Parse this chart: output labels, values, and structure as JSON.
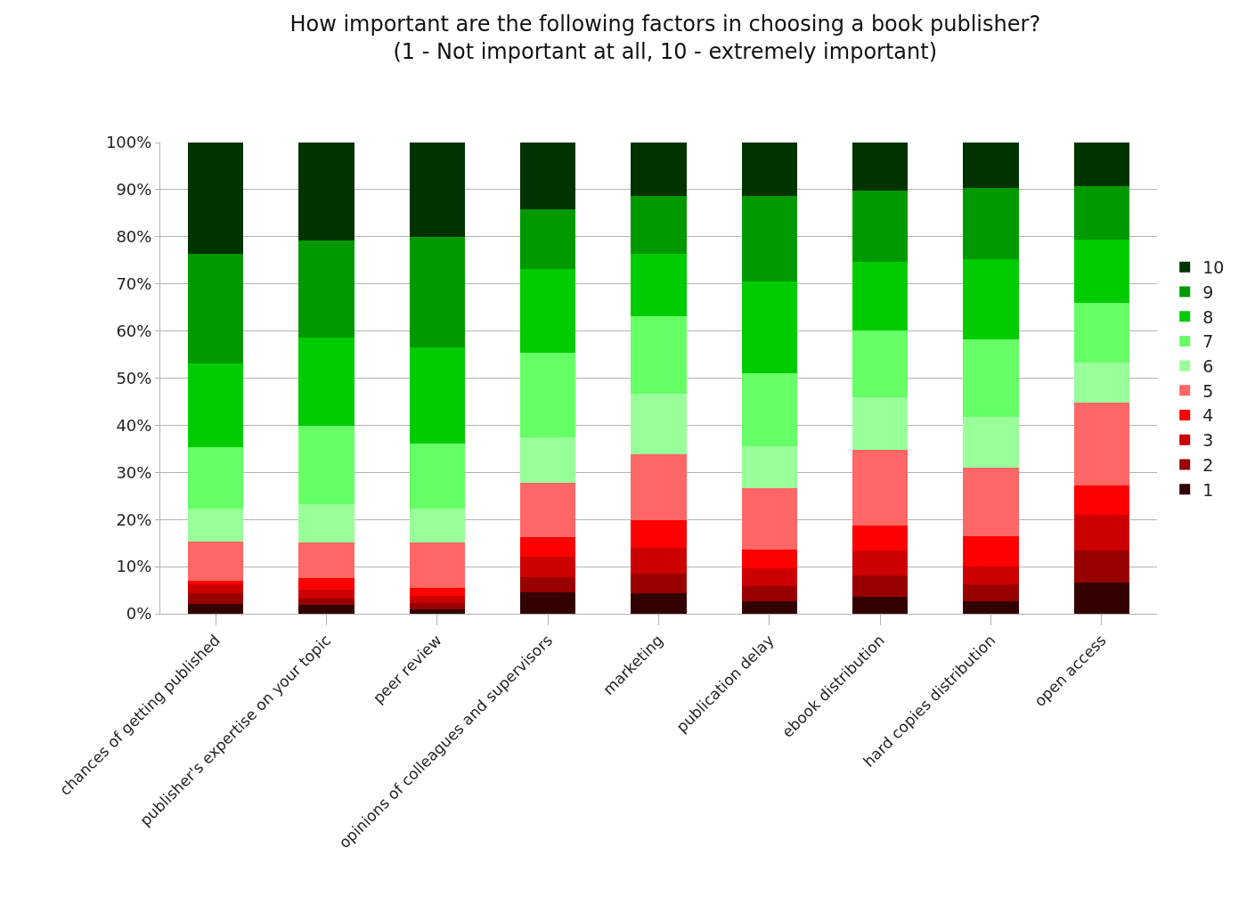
{
  "chart_data": {
    "type": "bar",
    "stacked": true,
    "title": "How important are the following factors in choosing a book publisher?\n(1 - Not important at all, 10 - extremely important)",
    "categories": [
      "chances of getting published",
      "publisher's expertise on your topic",
      "peer review",
      "opinions of colleagues and supervisors",
      "marketing",
      "publication delay",
      "ebook distribution",
      "hard copies distribution",
      "open access"
    ],
    "series": [
      {
        "name": "1",
        "color": "#330000",
        "values": [
          2.1,
          1.9,
          0.9,
          4.5,
          4.3,
          2.6,
          3.6,
          2.7,
          6.7
        ]
      },
      {
        "name": "2",
        "color": "#990000",
        "values": [
          2.2,
          1.3,
          1.3,
          3.3,
          4.2,
          3.2,
          4.6,
          3.5,
          6.7
        ]
      },
      {
        "name": "3",
        "color": "#cc0000",
        "values": [
          1.9,
          1.9,
          1.5,
          4.3,
          5.5,
          3.9,
          5.3,
          3.9,
          7.5
        ]
      },
      {
        "name": "4",
        "color": "#ff0000",
        "values": [
          0.8,
          2.4,
          1.7,
          4.1,
          5.9,
          4.0,
          5.2,
          6.3,
          6.4
        ]
      },
      {
        "name": "5",
        "color": "#ff6666",
        "values": [
          8.4,
          7.6,
          9.7,
          11.6,
          13.9,
          12.9,
          16.1,
          14.6,
          17.5
        ]
      },
      {
        "name": "6",
        "color": "#99ff99",
        "values": [
          7.0,
          8.2,
          7.3,
          9.7,
          12.8,
          8.9,
          11.2,
          10.8,
          8.5
        ]
      },
      {
        "name": "7",
        "color": "#66ff66",
        "values": [
          13.0,
          16.6,
          13.8,
          17.8,
          16.6,
          15.5,
          14.2,
          16.4,
          12.6
        ]
      },
      {
        "name": "8",
        "color": "#00cc00",
        "values": [
          17.8,
          18.7,
          20.4,
          17.8,
          13.1,
          19.5,
          14.4,
          17.0,
          13.5
        ]
      },
      {
        "name": "9",
        "color": "#009900",
        "values": [
          23.1,
          20.7,
          23.4,
          12.8,
          12.3,
          18.1,
          15.1,
          15.2,
          11.3
        ]
      },
      {
        "name": "10",
        "color": "#003300",
        "values": [
          23.7,
          20.7,
          20.0,
          14.1,
          11.4,
          11.4,
          10.3,
          9.6,
          9.3
        ]
      }
    ],
    "ylim": [
      0,
      100
    ],
    "yticks": [
      {
        "value": 0,
        "label": "0%"
      },
      {
        "value": 10,
        "label": "10%"
      },
      {
        "value": 20,
        "label": "20%"
      },
      {
        "value": 30,
        "label": "30%"
      },
      {
        "value": 40,
        "label": "40%"
      },
      {
        "value": 50,
        "label": "50%"
      },
      {
        "value": 60,
        "label": "60%"
      },
      {
        "value": 70,
        "label": "70%"
      },
      {
        "value": 80,
        "label": "80%"
      },
      {
        "value": 90,
        "label": "90%"
      },
      {
        "value": 100,
        "label": "100%"
      }
    ],
    "grid": "y",
    "legend": "right"
  }
}
